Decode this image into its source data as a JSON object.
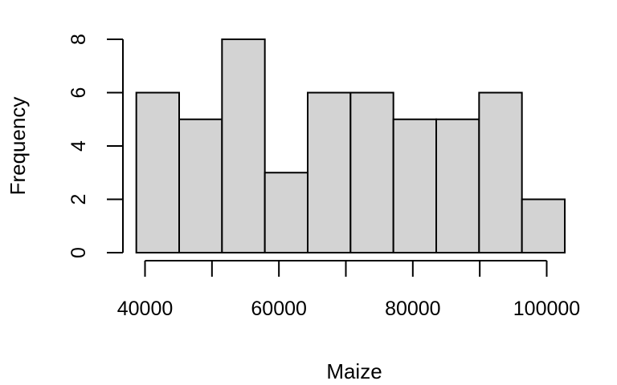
{
  "chart_data": {
    "type": "bar",
    "title": "",
    "xlabel": "Maize",
    "ylabel": "Frequency",
    "bin_edges": [
      38700,
      45100,
      51500,
      57900,
      64300,
      70700,
      77100,
      83500,
      89900,
      96300,
      102700
    ],
    "values": [
      6,
      5,
      8,
      3,
      6,
      6,
      5,
      5,
      6,
      2
    ],
    "xlim": [
      40000,
      100000
    ],
    "ylim": [
      0,
      8
    ],
    "x_ticks": [
      40000,
      50000,
      60000,
      70000,
      80000,
      90000,
      100000
    ],
    "x_tick_labels": [
      "40000",
      "",
      "60000",
      "",
      "80000",
      "",
      "100000"
    ],
    "y_ticks": [
      0,
      2,
      4,
      6,
      8
    ],
    "y_tick_labels": [
      "0",
      "2",
      "4",
      "6",
      "8"
    ],
    "bar_color": "#d3d3d3",
    "edge_color": "#000000",
    "grid": false,
    "legend": "none"
  }
}
